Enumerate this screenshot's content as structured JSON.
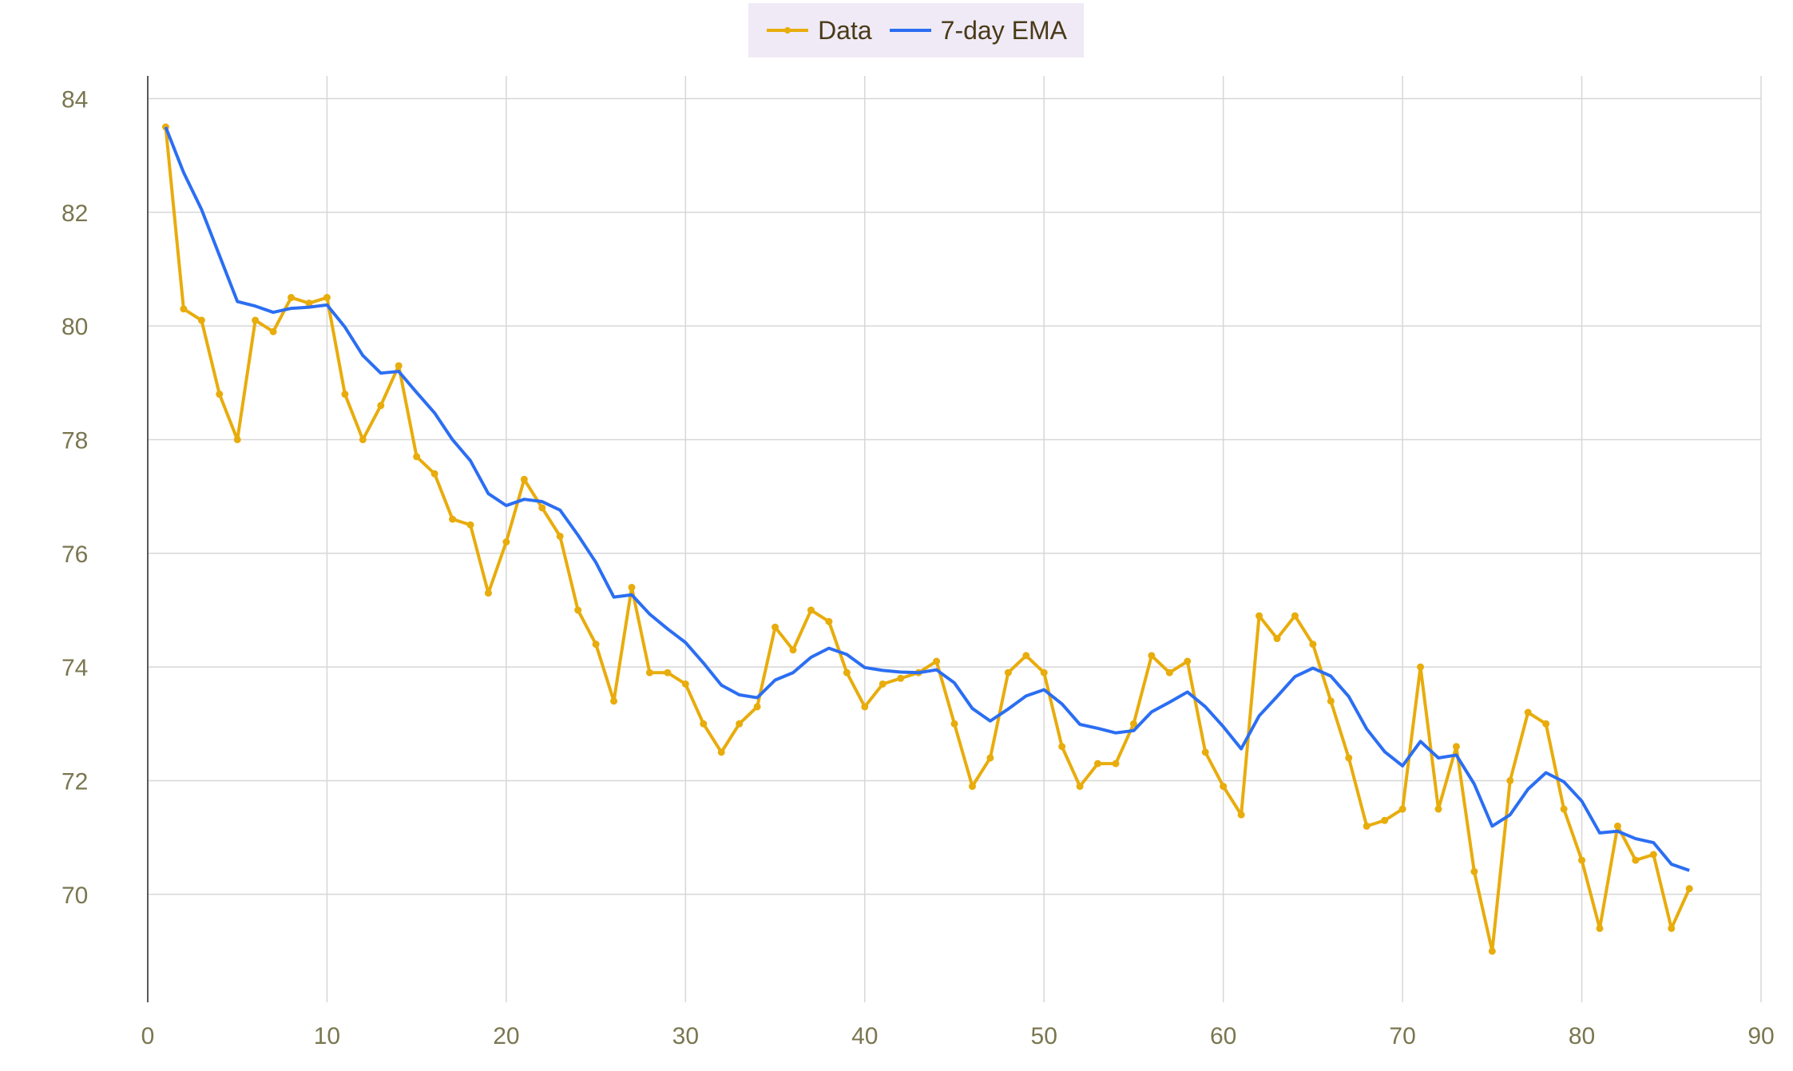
{
  "chart_data": {
    "type": "line",
    "title": "",
    "xlabel": "",
    "ylabel": "",
    "xlim": [
      0,
      90
    ],
    "ylim": [
      68.1,
      84.4
    ],
    "x_ticks": [
      "0",
      "10",
      "20",
      "30",
      "40",
      "50",
      "60",
      "70",
      "80",
      "90"
    ],
    "y_ticks": [
      "70",
      "72",
      "74",
      "76",
      "78",
      "80",
      "82",
      "84"
    ],
    "grid": true,
    "legend_position": "top-center",
    "x": [
      1,
      2,
      3,
      4,
      5,
      6,
      7,
      8,
      9,
      10,
      11,
      12,
      13,
      14,
      15,
      16,
      17,
      18,
      19,
      20,
      21,
      22,
      23,
      24,
      25,
      26,
      27,
      28,
      29,
      30,
      31,
      32,
      33,
      34,
      35,
      36,
      37,
      38,
      39,
      40,
      41,
      42,
      43,
      44,
      45,
      46,
      47,
      48,
      49,
      50,
      51,
      52,
      53,
      54,
      55,
      56,
      57,
      58,
      59,
      60,
      61,
      62,
      63,
      64,
      65,
      66,
      67,
      68,
      69,
      70,
      71,
      72,
      73,
      74,
      75,
      76,
      77,
      78,
      79,
      80,
      81,
      82,
      83,
      84,
      85,
      86
    ],
    "series": [
      {
        "name": "Data",
        "color": "#e8ac0c",
        "markers": true,
        "values": [
          83.5,
          80.3,
          80.1,
          78.8,
          78.0,
          80.1,
          79.9,
          80.5,
          80.4,
          80.5,
          78.8,
          78.0,
          78.6,
          79.3,
          77.7,
          77.4,
          76.6,
          76.5,
          75.3,
          76.2,
          77.3,
          76.8,
          76.3,
          75.0,
          74.4,
          73.4,
          75.4,
          73.9,
          73.9,
          73.7,
          73.0,
          72.5,
          73.0,
          73.3,
          74.7,
          74.3,
          75.0,
          74.8,
          73.9,
          73.3,
          73.7,
          73.8,
          73.9,
          74.1,
          73.0,
          71.9,
          72.4,
          73.9,
          74.2,
          73.9,
          72.6,
          71.9,
          72.3,
          72.3,
          73.0,
          74.2,
          73.9,
          74.1,
          72.5,
          71.9,
          71.4,
          74.9,
          74.5,
          74.9,
          74.4,
          73.4,
          72.4,
          71.2,
          71.3,
          71.5,
          74.0,
          71.5,
          72.6,
          70.4,
          69.0,
          72.0,
          73.2,
          73.0,
          71.5,
          70.6,
          69.4,
          71.2,
          70.6,
          70.7,
          69.4,
          70.1
        ]
      },
      {
        "name": "7-day EMA",
        "color": "#2b6ef2",
        "markers": false,
        "values": [
          83.5,
          82.7,
          82.05,
          81.24,
          80.43,
          80.35,
          80.24,
          80.31,
          80.33,
          80.37,
          79.98,
          79.48,
          79.17,
          79.2,
          78.83,
          78.47,
          78.0,
          77.63,
          77.05,
          76.84,
          76.95,
          76.91,
          76.76,
          76.32,
          75.84,
          75.23,
          75.27,
          74.93,
          74.67,
          74.43,
          74.07,
          73.68,
          73.51,
          73.46,
          73.77,
          73.9,
          74.17,
          74.33,
          74.22,
          73.99,
          73.94,
          73.91,
          73.9,
          73.95,
          73.72,
          73.27,
          73.05,
          73.26,
          73.49,
          73.6,
          73.35,
          72.99,
          72.92,
          72.84,
          72.88,
          73.21,
          73.38,
          73.56,
          73.3,
          72.95,
          72.56,
          73.14,
          73.48,
          73.83,
          73.98,
          73.84,
          73.48,
          72.91,
          72.51,
          72.26,
          72.69,
          72.4,
          72.45,
          71.94,
          71.2,
          71.4,
          71.85,
          72.14,
          71.98,
          71.64,
          71.08,
          71.11,
          70.98,
          70.91,
          70.53,
          70.42
        ]
      }
    ]
  }
}
